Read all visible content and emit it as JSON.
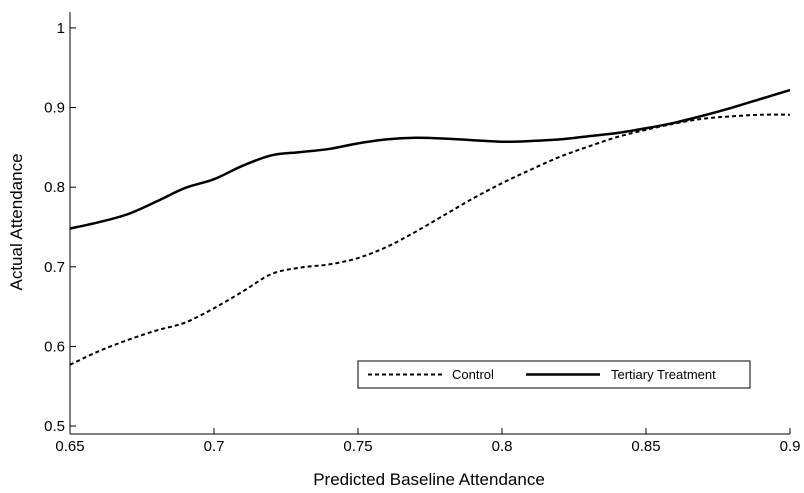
{
  "chart_data": {
    "type": "line",
    "xlabel": "Predicted Baseline Attendance",
    "ylabel": "Actual Attendance",
    "xlim": [
      0.65,
      0.9
    ],
    "ylim": [
      0.49,
      1.02
    ],
    "xticks": [
      0.65,
      0.7,
      0.75,
      0.8,
      0.85,
      0.9
    ],
    "xtick_labels": [
      "0.65",
      "0.7",
      "0.75",
      "0.8",
      "0.85",
      "0.9"
    ],
    "yticks": [
      0.5,
      0.6,
      0.7,
      0.8,
      0.9,
      1.0
    ],
    "ytick_labels": [
      "0.5",
      "0.6",
      "0.7",
      "0.8",
      "0.9",
      "1"
    ],
    "grid": false,
    "legend": {
      "placement": "lower-right"
    },
    "x": [
      0.65,
      0.66,
      0.67,
      0.68,
      0.69,
      0.7,
      0.71,
      0.72,
      0.73,
      0.74,
      0.75,
      0.76,
      0.77,
      0.78,
      0.79,
      0.8,
      0.81,
      0.82,
      0.83,
      0.84,
      0.85,
      0.86,
      0.87,
      0.88,
      0.89,
      0.9
    ],
    "series": [
      {
        "name": "Control",
        "style": "dashed",
        "color": "#000000",
        "values": [
          0.577,
          0.594,
          0.608,
          0.62,
          0.63,
          0.648,
          0.669,
          0.691,
          0.699,
          0.703,
          0.711,
          0.725,
          0.744,
          0.765,
          0.786,
          0.805,
          0.822,
          0.838,
          0.851,
          0.863,
          0.872,
          0.88,
          0.886,
          0.889,
          0.891,
          0.891
        ]
      },
      {
        "name": "Tertiary Treatment",
        "style": "solid",
        "color": "#000000",
        "values": [
          0.748,
          0.756,
          0.766,
          0.782,
          0.799,
          0.81,
          0.827,
          0.84,
          0.844,
          0.848,
          0.855,
          0.86,
          0.862,
          0.861,
          0.859,
          0.857,
          0.858,
          0.86,
          0.864,
          0.868,
          0.874,
          0.881,
          0.89,
          0.9,
          0.911,
          0.922
        ]
      }
    ]
  }
}
